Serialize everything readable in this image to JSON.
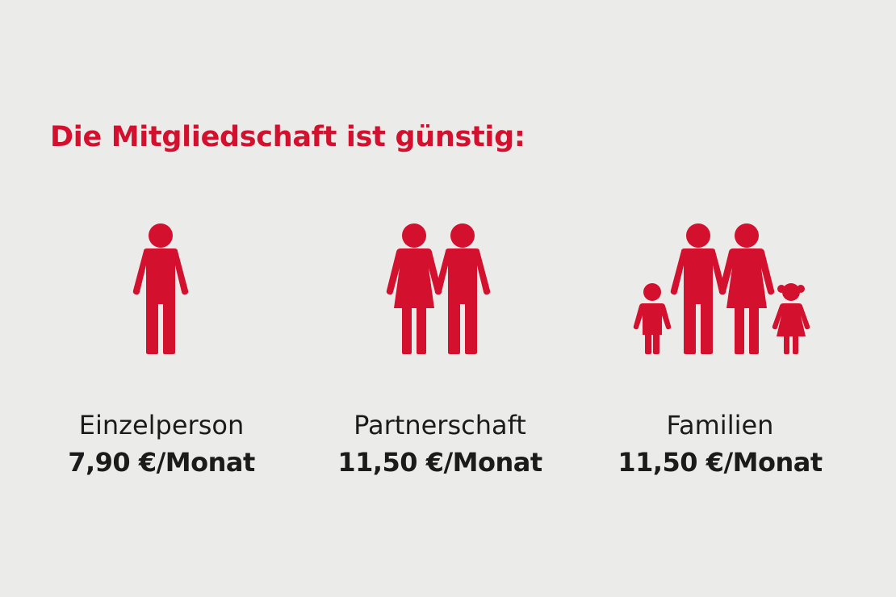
{
  "headline": "Die Mitgliedschaft ist günstig:",
  "colors": {
    "background": "#ebebea",
    "accent": "#d3112e",
    "text": "#1b1b1b"
  },
  "plans": [
    {
      "icon": "single-person-icon",
      "label": "Einzelperson",
      "price": "7,90 €/Monat"
    },
    {
      "icon": "couple-icon",
      "label": "Partnerschaft",
      "price": "11,50 €/Monat"
    },
    {
      "icon": "family-icon",
      "label": "Familien",
      "price": "11,50 €/Monat"
    }
  ]
}
